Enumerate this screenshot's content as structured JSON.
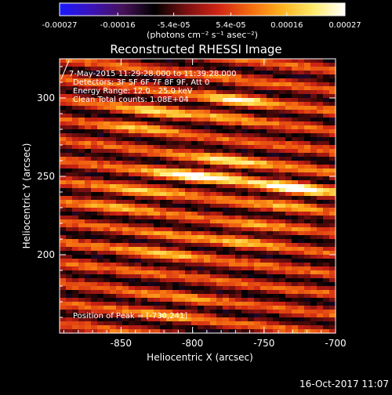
{
  "colorbar": {
    "ticks": [
      "-0.00027",
      "-0.00016",
      "-5.4e-05",
      "5.4e-05",
      "0.00016",
      "0.00027"
    ],
    "min": -0.00027,
    "max": 0.00027,
    "unit_label": "(photons cm⁻² s⁻¹ asec⁻²)",
    "colormap": [
      "#1a1aff",
      "#3b12b8",
      "#46125a",
      "#000000",
      "#7a1010",
      "#d02414",
      "#f46a10",
      "#ffb21e",
      "#ffea6a",
      "#ffffff"
    ]
  },
  "chart_data": {
    "type": "heatmap",
    "title": "Reconstructed RHESSI Image",
    "xlabel": "Heliocentric X (arcsec)",
    "ylabel": "Heliocentric Y (arcsec)",
    "xlim": [
      -893,
      -700
    ],
    "ylim": [
      150,
      325
    ],
    "xticks": [
      -850,
      -800,
      -750,
      -700
    ],
    "yticks": [
      200,
      250,
      300
    ],
    "annotations": [
      "7-May-2015 11:29:28.000 to 11:39:28.000",
      "Detectors: 3F 5F 6F 7F 8F 9F, Att 0",
      "Energy Range: 12.0 - 25.0 keV",
      "Clean    Total counts: 1.08E+04"
    ],
    "peak_label": "Position of Peak = [-730,241]",
    "peak": [
      -730,
      241
    ],
    "sources": [
      {
        "x": -730,
        "y": 241,
        "amp": 0.00027
      },
      {
        "x": -775,
        "y": 255,
        "amp": 0.0002
      },
      {
        "x": -808,
        "y": 250,
        "amp": 0.00018
      },
      {
        "x": -770,
        "y": 296,
        "amp": 0.00019
      },
      {
        "x": -830,
        "y": 287,
        "amp": 0.00016
      },
      {
        "x": -845,
        "y": 236,
        "amp": 0.00013
      },
      {
        "x": -760,
        "y": 212,
        "amp": 0.00012
      },
      {
        "x": -820,
        "y": 204,
        "amp": 0.00012
      },
      {
        "x": -815,
        "y": 165,
        "amp": 0.0001
      }
    ],
    "fringe_period_arcsec": 13,
    "fringe_tilt_deg": 6
  },
  "timestamp": "16-Oct-2017 11:07"
}
